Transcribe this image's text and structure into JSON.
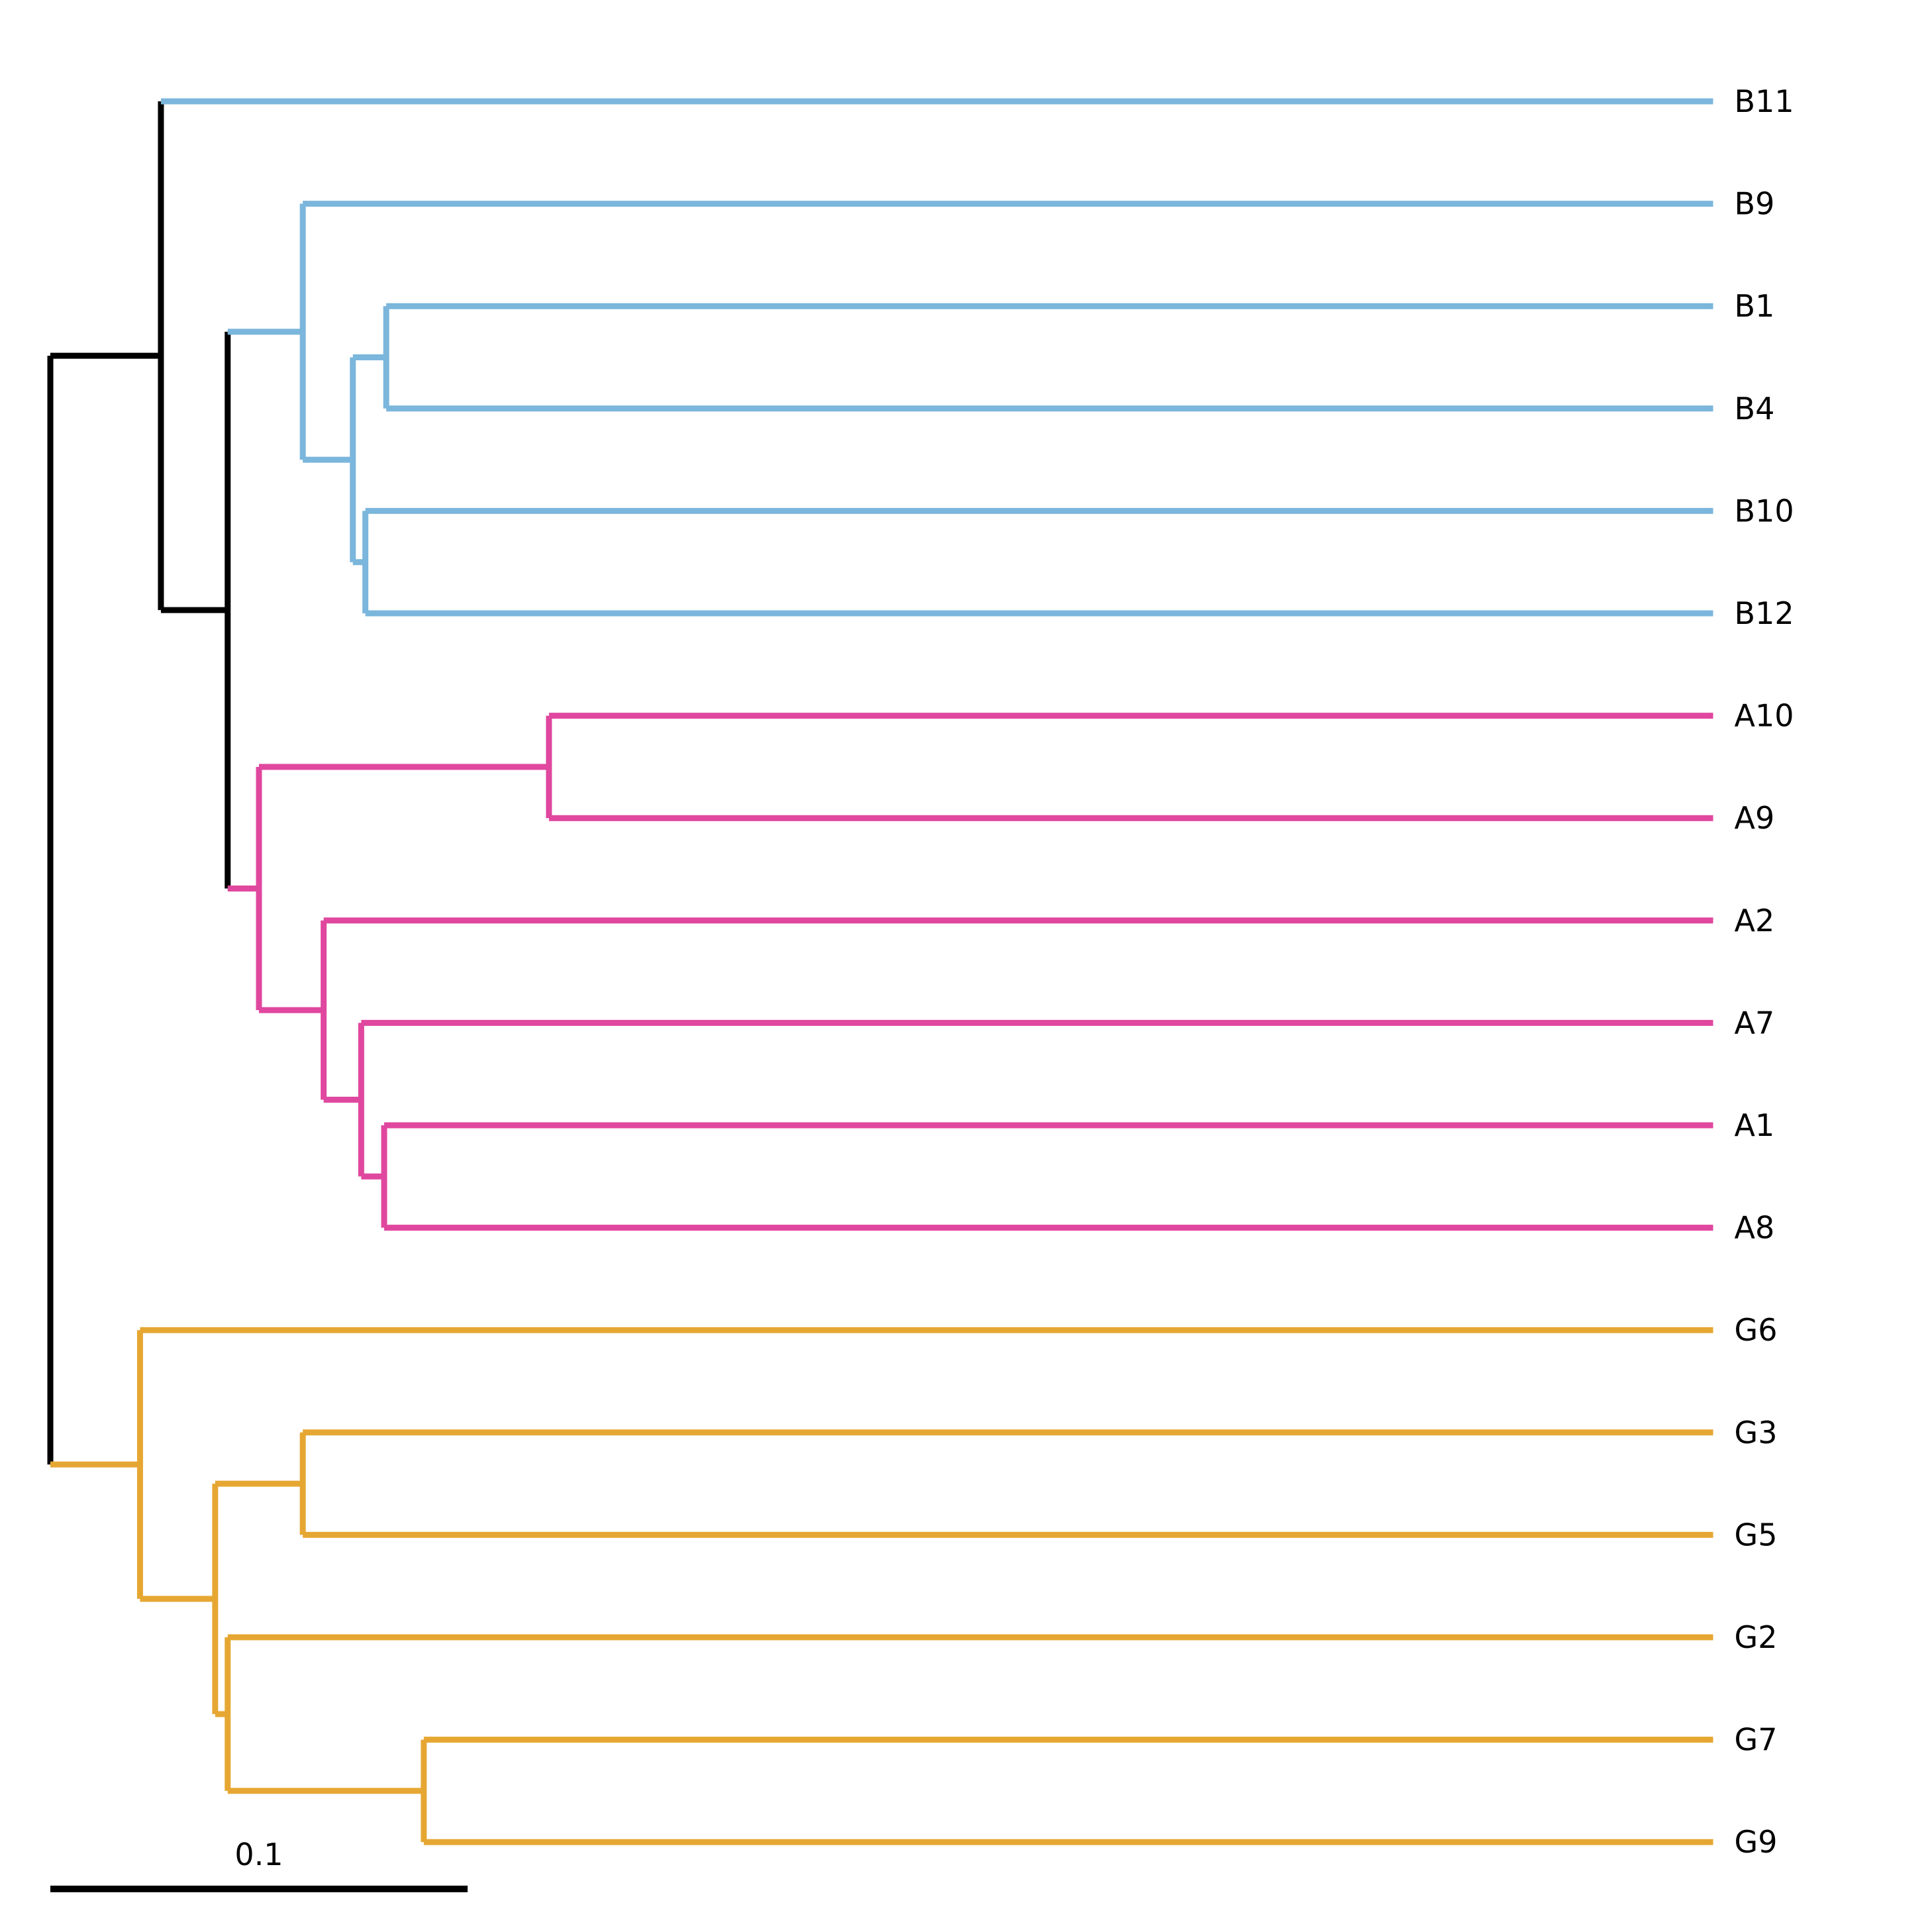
{
  "colors": {
    "backbone": "#000000",
    "clade_B": "#7bb6dc",
    "clade_A": "#e0479e",
    "clade_G": "#e6a732"
  },
  "tree": {
    "nodes": [
      {
        "id": "root",
        "x": 0.0,
        "parent": null,
        "color": "backbone"
      },
      {
        "id": "n1",
        "x": 0.0265,
        "parent": "root",
        "color": "backbone"
      },
      {
        "id": "n2",
        "x": 0.0425,
        "parent": "n1",
        "color": "backbone"
      },
      {
        "id": "nB1",
        "x": 0.0605,
        "parent": "n2",
        "color": "clade_B"
      },
      {
        "id": "nB2",
        "x": 0.0725,
        "parent": "nB1",
        "color": "clade_B"
      },
      {
        "id": "nB3",
        "x": 0.0805,
        "parent": "nB2",
        "color": "clade_B"
      },
      {
        "id": "nB4",
        "x": 0.0755,
        "parent": "nB2",
        "color": "clade_B"
      },
      {
        "id": "nA1",
        "x": 0.05,
        "parent": "n2",
        "color": "clade_A"
      },
      {
        "id": "nA2",
        "x": 0.1195,
        "parent": "nA1",
        "color": "clade_A"
      },
      {
        "id": "nA3",
        "x": 0.0655,
        "parent": "nA1",
        "color": "clade_A"
      },
      {
        "id": "nA4",
        "x": 0.0745,
        "parent": "nA3",
        "color": "clade_A"
      },
      {
        "id": "nA5",
        "x": 0.08,
        "parent": "nA4",
        "color": "clade_A"
      },
      {
        "id": "nG1",
        "x": 0.0215,
        "parent": "root",
        "color": "clade_G"
      },
      {
        "id": "nG2",
        "x": 0.0395,
        "parent": "nG1",
        "color": "clade_G"
      },
      {
        "id": "nG3",
        "x": 0.0605,
        "parent": "nG2",
        "color": "clade_G"
      },
      {
        "id": "nG4",
        "x": 0.0425,
        "parent": "nG2",
        "color": "clade_G"
      },
      {
        "id": "nG5",
        "x": 0.0895,
        "parent": "nG4",
        "color": "clade_G"
      }
    ],
    "tips": [
      {
        "label": "B11",
        "parent": "n1",
        "color": "clade_B"
      },
      {
        "label": "B9",
        "parent": "nB1",
        "color": "clade_B"
      },
      {
        "label": "B1",
        "parent": "nB3",
        "color": "clade_B"
      },
      {
        "label": "B4",
        "parent": "nB3",
        "color": "clade_B"
      },
      {
        "label": "B10",
        "parent": "nB4",
        "color": "clade_B"
      },
      {
        "label": "B12",
        "parent": "nB4",
        "color": "clade_B"
      },
      {
        "label": "A10",
        "parent": "nA2",
        "color": "clade_A"
      },
      {
        "label": "A9",
        "parent": "nA2",
        "color": "clade_A"
      },
      {
        "label": "A2",
        "parent": "nA3",
        "color": "clade_A"
      },
      {
        "label": "A7",
        "parent": "nA4",
        "color": "clade_A"
      },
      {
        "label": "A1",
        "parent": "nA5",
        "color": "clade_A"
      },
      {
        "label": "A8",
        "parent": "nA5",
        "color": "clade_A"
      },
      {
        "label": "G6",
        "parent": "nG1",
        "color": "clade_G"
      },
      {
        "label": "G3",
        "parent": "nG3",
        "color": "clade_G"
      },
      {
        "label": "G5",
        "parent": "nG3",
        "color": "clade_G"
      },
      {
        "label": "G2",
        "parent": "nG4",
        "color": "clade_G"
      },
      {
        "label": "G7",
        "parent": "nG5",
        "color": "clade_G"
      },
      {
        "label": "G9",
        "parent": "nG5",
        "color": "clade_G"
      }
    ],
    "tip_depth": 0.3985
  },
  "scale_bar": {
    "length": 0.1,
    "label": "0.1"
  }
}
